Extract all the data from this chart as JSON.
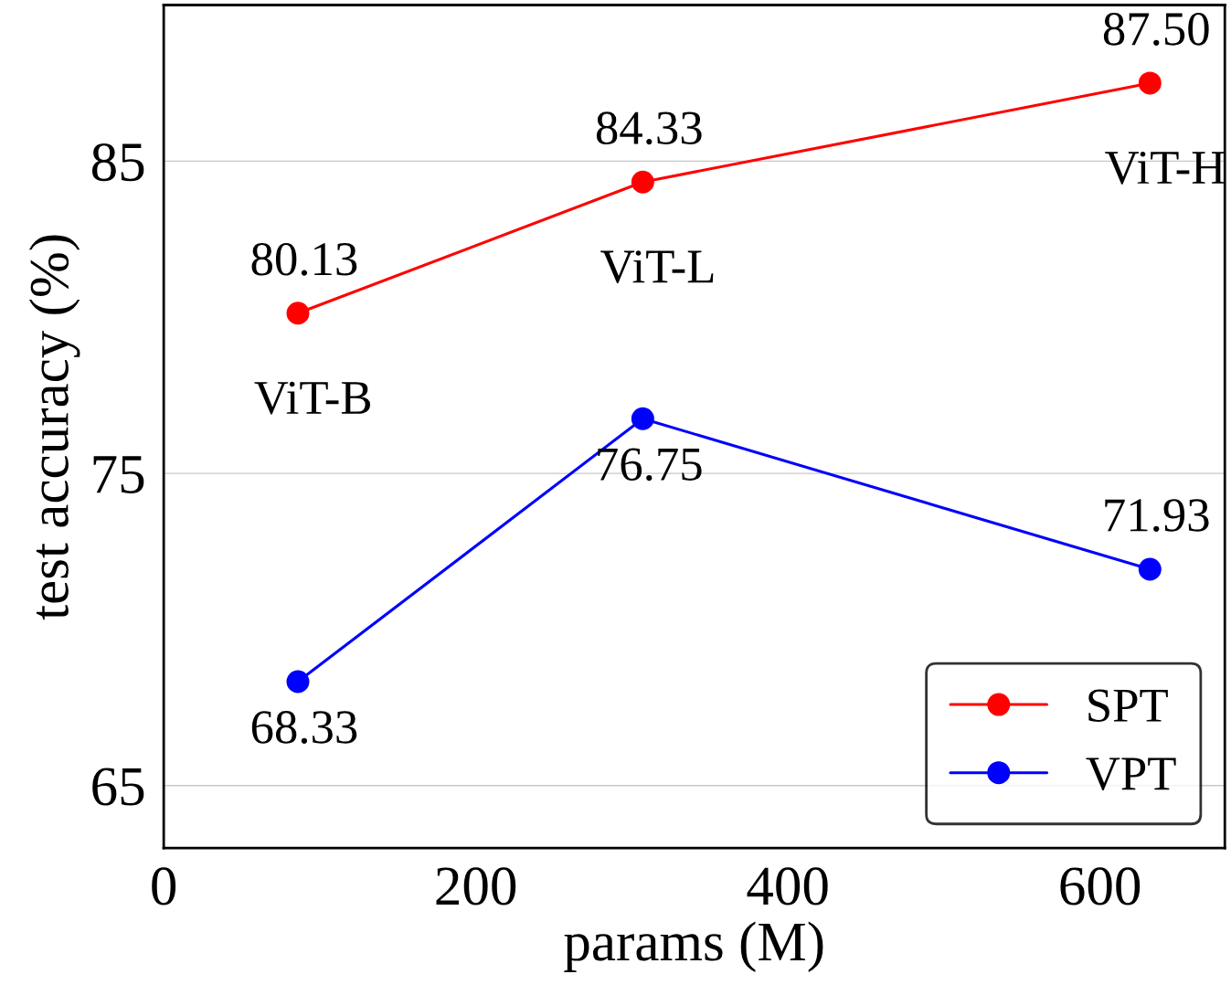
{
  "chart_data": {
    "type": "line",
    "xlabel": "params (M)",
    "ylabel": "test accuracy (%)",
    "x": [
      86,
      307,
      632
    ],
    "series": [
      {
        "name": "SPT",
        "color": "#ff0000",
        "values": [
          80.13,
          84.33,
          87.5
        ],
        "value_labels": [
          "80.13",
          "84.33",
          "87.50"
        ]
      },
      {
        "name": "VPT",
        "color": "#0000ff",
        "values": [
          68.33,
          76.75,
          71.93
        ],
        "value_labels": [
          "68.33",
          "76.75",
          "71.93"
        ]
      }
    ],
    "annotations": [
      "ViT-B",
      "ViT-L",
      "ViT-H"
    ],
    "xlim": [
      0,
      680
    ],
    "xticks": [
      0,
      200,
      400,
      600
    ],
    "ylim": [
      63,
      90
    ],
    "yticks": [
      65,
      75,
      85
    ],
    "grid": "y",
    "legend": "bottom right",
    "marker": "circle",
    "line_style": "solid"
  }
}
